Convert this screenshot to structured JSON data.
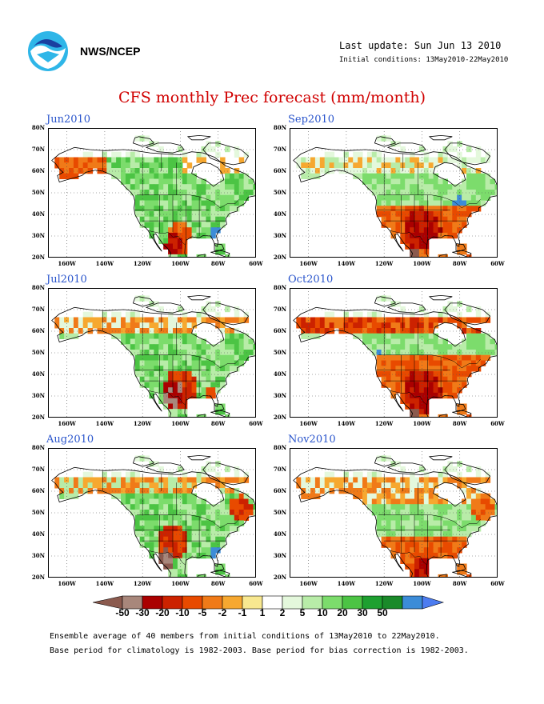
{
  "header": {
    "org": "NWS/NCEP",
    "last_update": "Last update: Sun Jun 13 2010",
    "initial_conditions": "Initial conditions: 13May2010-22May2010"
  },
  "title": "CFS monthly Prec forecast (mm/month)",
  "colors": {
    "land": "#ffffff",
    "ocean": "#ffffff",
    "grid": "#555555",
    "scale": [
      "#8b5a4e",
      "#a8877b",
      "#aa0000",
      "#cc2200",
      "#e84a00",
      "#f07a18",
      "#f6a830",
      "#f8e890",
      "#ffffff",
      "#e4f8dc",
      "#b8eca8",
      "#7cdc6c",
      "#4cc444",
      "#1ea030",
      "#1a8a2a",
      "#3c8cd8",
      "#4c7cf0"
    ]
  },
  "axes": {
    "lat_labels": [
      "80N",
      "70N",
      "60N",
      "50N",
      "40N",
      "30N",
      "20N"
    ],
    "lon_labels": [
      "160W",
      "140W",
      "120W",
      "100W",
      "80W",
      "60W"
    ]
  },
  "panels": [
    {
      "label": "Jun2010",
      "pattern": "jun"
    },
    {
      "label": "Sep2010",
      "pattern": "sep"
    },
    {
      "label": "Jul2010",
      "pattern": "jul"
    },
    {
      "label": "Oct2010",
      "pattern": "oct"
    },
    {
      "label": "Aug2010",
      "pattern": "aug"
    },
    {
      "label": "Nov2010",
      "pattern": "nov"
    }
  ],
  "colorbar": {
    "labels": [
      "-50",
      "-30",
      "-20",
      "-10",
      "-5",
      "-2",
      "-1",
      "1",
      "2",
      "5",
      "10",
      "20",
      "30",
      "50"
    ]
  },
  "footer": {
    "line1": "Ensemble average of 40 members from initial conditions of 13May2010 to 22May2010.",
    "line2": "Base period for climatology is 1982-2003. Base period for bias correction is 1982-2003."
  }
}
